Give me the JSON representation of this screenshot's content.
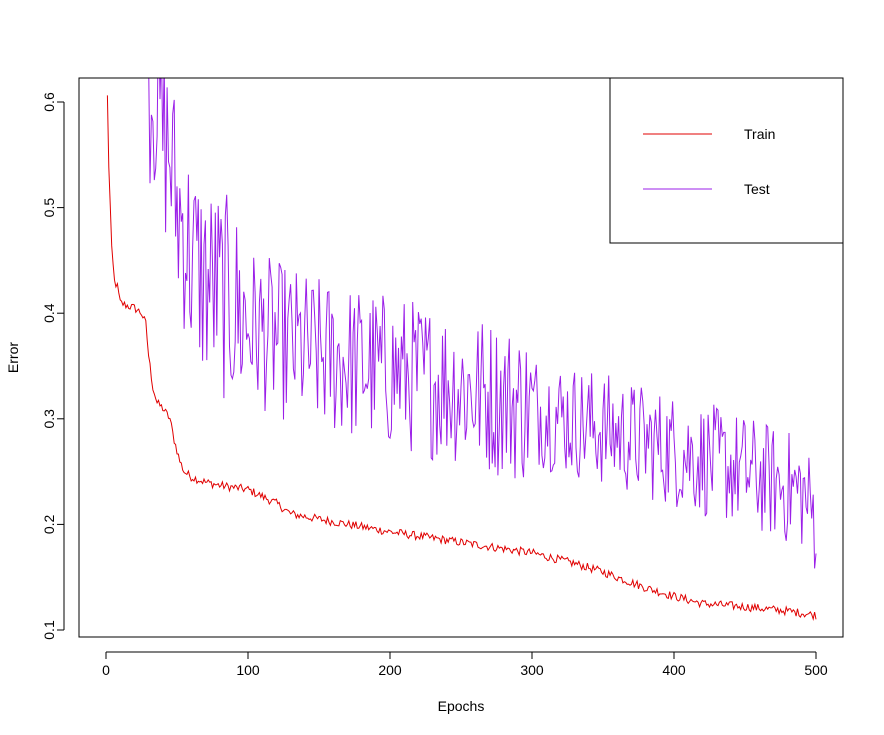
{
  "chart_data": {
    "type": "line",
    "title": "",
    "xlabel": "Epochs",
    "ylabel": "Error",
    "xlim": [
      0,
      500
    ],
    "ylim": [
      0.1,
      0.62
    ],
    "x_ticks": [
      0,
      100,
      200,
      300,
      400,
      500
    ],
    "y_ticks": [
      0.1,
      0.2,
      0.3,
      0.4,
      0.5,
      0.6
    ],
    "x_tick_labels": [
      "0",
      "100",
      "200",
      "300",
      "400",
      "500"
    ],
    "y_tick_labels": [
      "0.1",
      "0.2",
      "0.3",
      "0.4",
      "0.5",
      "0.6"
    ],
    "grid": false,
    "legend_position": "top-right",
    "series": [
      {
        "name": "Train",
        "color": "#e00000",
        "points": [
          [
            1,
            0.605
          ],
          [
            2,
            0.54
          ],
          [
            4,
            0.46
          ],
          [
            6,
            0.43
          ],
          [
            8,
            0.425
          ],
          [
            10,
            0.41
          ],
          [
            15,
            0.407
          ],
          [
            20,
            0.405
          ],
          [
            25,
            0.4
          ],
          [
            28,
            0.39
          ],
          [
            30,
            0.36
          ],
          [
            33,
            0.33
          ],
          [
            36,
            0.315
          ],
          [
            40,
            0.31
          ],
          [
            45,
            0.3
          ],
          [
            48,
            0.28
          ],
          [
            52,
            0.26
          ],
          [
            55,
            0.25
          ],
          [
            60,
            0.245
          ],
          [
            70,
            0.24
          ],
          [
            80,
            0.237
          ],
          [
            100,
            0.233
          ],
          [
            120,
            0.22
          ],
          [
            130,
            0.21
          ],
          [
            150,
            0.205
          ],
          [
            200,
            0.193
          ],
          [
            250,
            0.183
          ],
          [
            300,
            0.173
          ],
          [
            330,
            0.163
          ],
          [
            350,
            0.155
          ],
          [
            380,
            0.14
          ],
          [
            400,
            0.132
          ],
          [
            420,
            0.125
          ],
          [
            450,
            0.122
          ],
          [
            480,
            0.118
          ],
          [
            500,
            0.114
          ]
        ]
      },
      {
        "name": "Test",
        "color": "#9b1fe8",
        "points": [
          [
            30,
            0.62
          ],
          [
            35,
            0.61
          ],
          [
            40,
            0.57
          ],
          [
            45,
            0.55
          ],
          [
            50,
            0.5
          ],
          [
            55,
            0.48
          ],
          [
            60,
            0.45
          ],
          [
            70,
            0.43
          ],
          [
            80,
            0.42
          ],
          [
            100,
            0.39
          ],
          [
            120,
            0.375
          ],
          [
            150,
            0.36
          ],
          [
            200,
            0.345
          ],
          [
            250,
            0.33
          ],
          [
            300,
            0.31
          ],
          [
            350,
            0.29
          ],
          [
            400,
            0.27
          ],
          [
            450,
            0.25
          ],
          [
            490,
            0.23
          ],
          [
            500,
            0.205
          ]
        ]
      }
    ]
  }
}
